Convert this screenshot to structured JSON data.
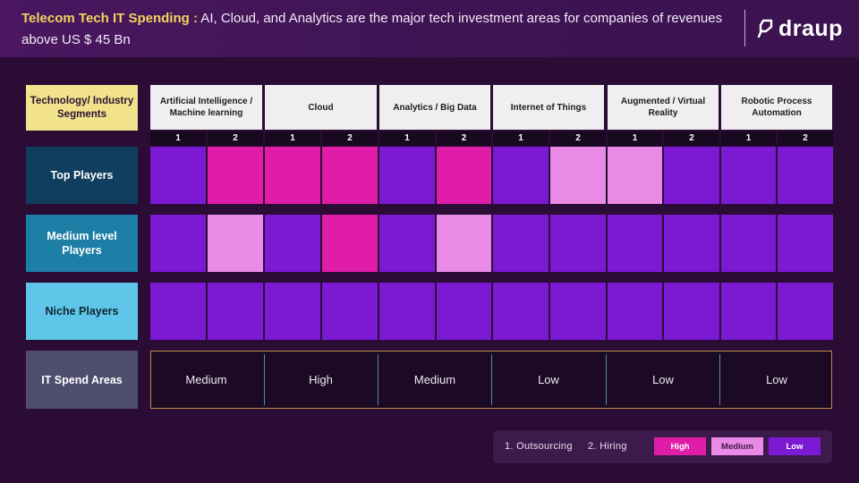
{
  "header": {
    "title_strong": "Telecom Tech IT Spending :",
    "title_rest": " AI, Cloud, and Analytics are the major tech investment areas for companies of revenues above US $ 45 Bn",
    "logo_text": "draup",
    "logo_icon": "draup-logo-icon"
  },
  "colors": {
    "high": "#e01da8",
    "medium": "#e98ae6",
    "low": "#7b19d3"
  },
  "chart_data": {
    "type": "heatmap",
    "row_header": "Technology/ Industry Segments",
    "columns": [
      {
        "name": "Artificial Intelligence / Machine learning",
        "subs": [
          "1",
          "2"
        ]
      },
      {
        "name": "Cloud",
        "subs": [
          "1",
          "2"
        ]
      },
      {
        "name": "Analytics / Big Data",
        "subs": [
          "1",
          "2"
        ]
      },
      {
        "name": "Internet of Things",
        "subs": [
          "1",
          "2"
        ]
      },
      {
        "name": "Augmented / Virtual Reality",
        "subs": [
          "1",
          "2"
        ]
      },
      {
        "name": "Robotic Process Automation",
        "subs": [
          "1",
          "2"
        ]
      }
    ],
    "rows": [
      {
        "name": "Top Players",
        "values": [
          "Low",
          "High",
          "High",
          "High",
          "Low",
          "High",
          "Low",
          "Medium",
          "Medium",
          "Low",
          "Low",
          "Low"
        ]
      },
      {
        "name": "Medium level Players",
        "values": [
          "Low",
          "Medium",
          "Low",
          "High",
          "Low",
          "Medium",
          "Low",
          "Low",
          "Low",
          "Low",
          "Low",
          "Low"
        ]
      },
      {
        "name": "Niche Players",
        "values": [
          "Low",
          "Low",
          "Low",
          "Low",
          "Low",
          "Low",
          "Low",
          "Low",
          "Low",
          "Low",
          "Low",
          "Low"
        ]
      }
    ],
    "spend_label": "IT Spend Areas",
    "spend": [
      "Medium",
      "High",
      "Medium",
      "Low",
      "Low",
      "Low"
    ]
  },
  "legend": {
    "item1": "1.  Outsourcing",
    "item2": "2.  Hiring",
    "high": "High",
    "medium": "Medium",
    "low": "Low"
  }
}
